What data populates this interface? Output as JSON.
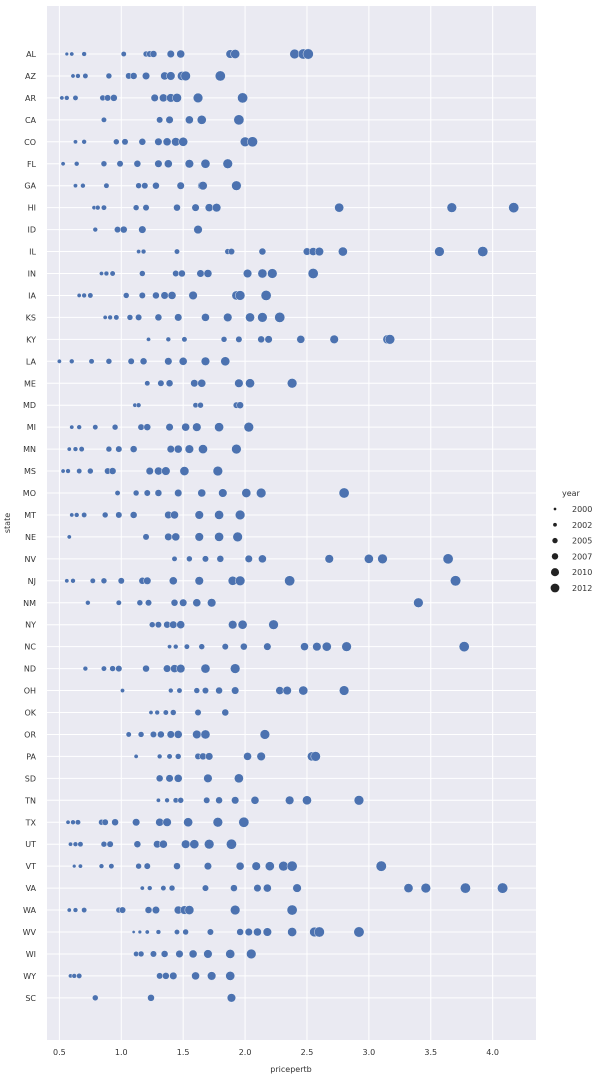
{
  "chart_data": {
    "type": "scatter",
    "xlabel": "pricepertb",
    "ylabel": "state",
    "xlim": [
      0.4,
      4.35
    ],
    "x_ticks": [
      "0.5",
      "1.0",
      "1.5",
      "2.0",
      "2.5",
      "3.0",
      "3.5",
      "4.0"
    ],
    "grid": true,
    "legend": {
      "title": "year",
      "placement": "right",
      "labels": [
        "2000",
        "2002",
        "2005",
        "2007",
        "2010",
        "2012"
      ]
    },
    "point_color": "#4c72b0",
    "categories": [
      "AL",
      "AZ",
      "AR",
      "CA",
      "CO",
      "FL",
      "GA",
      "HI",
      "ID",
      "IL",
      "IN",
      "IA",
      "KS",
      "KY",
      "LA",
      "ME",
      "MD",
      "MI",
      "MN",
      "MS",
      "MO",
      "MT",
      "NE",
      "NV",
      "NJ",
      "NM",
      "NY",
      "NC",
      "ND",
      "OH",
      "OK",
      "OR",
      "PA",
      "SD",
      "TN",
      "TX",
      "UT",
      "VT",
      "VA",
      "WA",
      "WV",
      "WI",
      "WY",
      "SC"
    ],
    "series": [
      {
        "state": "AL",
        "x": [
          0.56,
          0.6,
          0.7,
          1.02,
          1.2,
          1.23,
          1.26,
          1.4,
          1.48,
          1.88,
          1.92,
          2.4,
          2.47,
          2.51
        ],
        "year": [
          1999,
          2000,
          2001,
          2002,
          2003,
          2004,
          2005,
          2006,
          2007,
          2008,
          2009,
          2010,
          2011,
          2012
        ]
      },
      {
        "state": "AZ",
        "x": [
          0.61,
          0.65,
          0.71,
          0.9,
          1.06,
          1.1,
          1.2,
          1.35,
          1.4,
          1.49,
          1.52,
          1.8
        ],
        "year": [
          2000,
          2001,
          2002,
          2003,
          2004,
          2005,
          2006,
          2007,
          2008,
          2009,
          2010,
          2011
        ]
      },
      {
        "state": "AR",
        "x": [
          0.52,
          0.56,
          0.63,
          0.85,
          0.89,
          0.94,
          1.27,
          1.34,
          1.4,
          1.45,
          1.62,
          1.98
        ],
        "year": [
          2000,
          2001,
          2002,
          2003,
          2004,
          2005,
          2006,
          2007,
          2008,
          2009,
          2010,
          2011
        ]
      },
      {
        "state": "CA",
        "x": [
          0.86,
          1.31,
          1.39,
          1.55,
          1.65,
          1.95
        ],
        "year": [
          2002,
          2004,
          2006,
          2007,
          2009,
          2011
        ]
      },
      {
        "state": "CO",
        "x": [
          0.63,
          0.7,
          0.96,
          1.03,
          1.17,
          1.3,
          1.37,
          1.44,
          1.5,
          2.0,
          2.06
        ],
        "year": [
          2000,
          2001,
          2003,
          2004,
          2005,
          2006,
          2007,
          2008,
          2009,
          2010,
          2011
        ]
      },
      {
        "state": "FL",
        "x": [
          0.53,
          0.64,
          0.86,
          0.99,
          1.13,
          1.3,
          1.38,
          1.55,
          1.68,
          1.86
        ],
        "year": [
          2000,
          2001,
          2003,
          2004,
          2005,
          2006,
          2007,
          2008,
          2009,
          2010
        ]
      },
      {
        "state": "GA",
        "x": [
          0.63,
          0.69,
          0.88,
          1.14,
          1.19,
          1.28,
          1.48,
          1.65,
          1.66,
          1.93
        ],
        "year": [
          2000,
          2001,
          2002,
          2003,
          2004,
          2005,
          2006,
          2007,
          2008,
          2010
        ]
      },
      {
        "state": "HI",
        "x": [
          0.78,
          0.81,
          0.86,
          1.12,
          1.2,
          1.45,
          1.6,
          1.71,
          1.77,
          2.76,
          3.67,
          4.17
        ],
        "year": [
          2000,
          2001,
          2002,
          2003,
          2004,
          2005,
          2006,
          2007,
          2008,
          2009,
          2010,
          2011
        ]
      },
      {
        "state": "ID",
        "x": [
          0.79,
          0.97,
          1.02,
          1.17,
          1.62
        ],
        "year": [
          2001,
          2004,
          2005,
          2006,
          2008
        ]
      },
      {
        "state": "IL",
        "x": [
          1.14,
          1.18,
          1.45,
          1.86,
          1.89,
          2.14,
          2.5,
          2.55,
          2.6,
          2.79,
          3.57,
          3.92
        ],
        "year": [
          2000,
          2001,
          2002,
          2003,
          2004,
          2005,
          2006,
          2007,
          2008,
          2009,
          2010,
          2011
        ]
      },
      {
        "state": "IN",
        "x": [
          0.84,
          0.88,
          0.93,
          1.17,
          1.44,
          1.49,
          1.64,
          1.7,
          2.02,
          2.14,
          2.22,
          2.55
        ],
        "year": [
          2000,
          2001,
          2002,
          2003,
          2004,
          2005,
          2006,
          2007,
          2008,
          2009,
          2010,
          2011
        ]
      },
      {
        "state": "IA",
        "x": [
          0.66,
          0.7,
          0.75,
          1.04,
          1.17,
          1.28,
          1.35,
          1.41,
          1.58,
          1.93,
          1.96,
          2.17
        ],
        "year": [
          2000,
          2001,
          2002,
          2003,
          2004,
          2005,
          2006,
          2007,
          2008,
          2009,
          2010,
          2011
        ]
      },
      {
        "state": "KS",
        "x": [
          0.87,
          0.91,
          0.96,
          1.07,
          1.14,
          1.3,
          1.46,
          1.68,
          1.86,
          2.04,
          2.14,
          2.28
        ],
        "year": [
          2000,
          2001,
          2002,
          2003,
          2004,
          2005,
          2006,
          2007,
          2008,
          2009,
          2010,
          2011
        ]
      },
      {
        "state": "KY",
        "x": [
          1.22,
          1.38,
          1.51,
          1.83,
          1.95,
          2.13,
          2.19,
          2.45,
          2.72,
          3.15,
          3.17
        ],
        "year": [
          2000,
          2001,
          2002,
          2003,
          2004,
          2005,
          2006,
          2007,
          2008,
          2009,
          2010
        ]
      },
      {
        "state": "LA",
        "x": [
          0.5,
          0.6,
          0.76,
          0.9,
          1.08,
          1.18,
          1.38,
          1.5,
          1.68,
          1.84
        ],
        "year": [
          2000,
          2001,
          2002,
          2003,
          2004,
          2005,
          2006,
          2007,
          2008,
          2009
        ]
      },
      {
        "state": "ME",
        "x": [
          1.21,
          1.32,
          1.39,
          1.59,
          1.65,
          1.95,
          2.04,
          2.38
        ],
        "year": [
          2002,
          2004,
          2005,
          2006,
          2007,
          2008,
          2009,
          2010
        ]
      },
      {
        "state": "MD",
        "x": [
          1.11,
          1.14,
          1.6,
          1.64,
          1.93,
          1.96
        ],
        "year": [
          2000,
          2001,
          2002,
          2003,
          2004,
          2005
        ]
      },
      {
        "state": "MI",
        "x": [
          0.6,
          0.66,
          0.79,
          0.95,
          1.16,
          1.21,
          1.39,
          1.52,
          1.61,
          1.79,
          2.03
        ],
        "year": [
          2000,
          2001,
          2002,
          2003,
          2004,
          2005,
          2006,
          2007,
          2008,
          2009,
          2010
        ]
      },
      {
        "state": "MN",
        "x": [
          0.58,
          0.63,
          0.68,
          0.9,
          0.98,
          1.1,
          1.4,
          1.46,
          1.55,
          1.66,
          1.93
        ],
        "year": [
          2000,
          2001,
          2002,
          2003,
          2004,
          2005,
          2006,
          2007,
          2008,
          2009,
          2010
        ]
      },
      {
        "state": "MS",
        "x": [
          0.53,
          0.57,
          0.66,
          0.75,
          0.89,
          0.93,
          1.23,
          1.3,
          1.36,
          1.51,
          1.78
        ],
        "year": [
          2000,
          2001,
          2002,
          2003,
          2004,
          2005,
          2006,
          2007,
          2008,
          2009,
          2010
        ]
      },
      {
        "state": "MO",
        "x": [
          0.97,
          1.12,
          1.21,
          1.3,
          1.46,
          1.65,
          1.82,
          2.01,
          2.13,
          2.8
        ],
        "year": [
          2002,
          2003,
          2004,
          2005,
          2006,
          2007,
          2008,
          2009,
          2010,
          2011
        ]
      },
      {
        "state": "MT",
        "x": [
          0.6,
          0.64,
          0.7,
          0.87,
          0.98,
          1.1,
          1.38,
          1.43,
          1.63,
          1.79,
          1.96
        ],
        "year": [
          2000,
          2001,
          2002,
          2003,
          2004,
          2005,
          2006,
          2007,
          2008,
          2009,
          2010
        ]
      },
      {
        "state": "NE",
        "x": [
          0.58,
          1.2,
          1.38,
          1.44,
          1.63,
          1.79,
          1.94
        ],
        "year": [
          2000,
          2004,
          2006,
          2007,
          2008,
          2009,
          2010
        ]
      },
      {
        "state": "NV",
        "x": [
          1.43,
          1.55,
          1.68,
          1.8,
          2.03,
          2.14,
          2.68,
          3.0,
          3.11,
          3.64
        ],
        "year": [
          2002,
          2003,
          2004,
          2005,
          2006,
          2007,
          2008,
          2009,
          2010,
          2011
        ]
      },
      {
        "state": "NJ",
        "x": [
          0.56,
          0.61,
          0.77,
          0.86,
          1.0,
          1.17,
          1.21,
          1.42,
          1.63,
          1.9,
          1.96,
          2.36,
          3.7
        ],
        "year": [
          2000,
          2001,
          2002,
          2003,
          2004,
          2005,
          2006,
          2007,
          2008,
          2009,
          2010,
          2011,
          2012
        ]
      },
      {
        "state": "NM",
        "x": [
          0.73,
          0.98,
          1.15,
          1.22,
          1.43,
          1.5,
          1.61,
          1.73,
          3.4
        ],
        "year": [
          2001,
          2002,
          2003,
          2004,
          2005,
          2006,
          2007,
          2008,
          2010
        ]
      },
      {
        "state": "NY",
        "x": [
          1.25,
          1.3,
          1.37,
          1.42,
          1.48,
          1.9,
          1.98,
          2.23
        ],
        "year": [
          2003,
          2004,
          2005,
          2006,
          2007,
          2008,
          2009,
          2010
        ]
      },
      {
        "state": "NC",
        "x": [
          1.39,
          1.44,
          1.53,
          1.65,
          1.84,
          1.99,
          2.18,
          2.48,
          2.58,
          2.66,
          2.82,
          3.77
        ],
        "year": [
          2000,
          2001,
          2002,
          2003,
          2004,
          2005,
          2006,
          2007,
          2008,
          2009,
          2010,
          2011
        ]
      },
      {
        "state": "ND",
        "x": [
          0.71,
          0.86,
          0.93,
          0.98,
          1.2,
          1.37,
          1.43,
          1.48,
          1.68,
          1.92
        ],
        "year": [
          2001,
          2002,
          2003,
          2004,
          2005,
          2006,
          2007,
          2008,
          2009,
          2010
        ]
      },
      {
        "state": "OH",
        "x": [
          1.01,
          1.4,
          1.47,
          1.61,
          1.68,
          1.79,
          1.92,
          2.28,
          2.34,
          2.47,
          2.8
        ],
        "year": [
          2000,
          2001,
          2002,
          2003,
          2004,
          2005,
          2006,
          2007,
          2008,
          2009,
          2010
        ]
      },
      {
        "state": "OK",
        "x": [
          1.24,
          1.29,
          1.36,
          1.42,
          1.62,
          1.84
        ],
        "year": [
          2000,
          2001,
          2002,
          2003,
          2004,
          2005
        ]
      },
      {
        "state": "OR",
        "x": [
          1.06,
          1.16,
          1.26,
          1.32,
          1.4,
          1.46,
          1.61,
          1.68,
          2.16
        ],
        "year": [
          2002,
          2003,
          2004,
          2005,
          2006,
          2007,
          2008,
          2009,
          2010
        ]
      },
      {
        "state": "PA",
        "x": [
          1.12,
          1.31,
          1.39,
          1.46,
          1.62,
          1.66,
          1.71,
          2.02,
          2.13,
          2.54,
          2.57
        ],
        "year": [
          2000,
          2001,
          2002,
          2003,
          2004,
          2005,
          2006,
          2007,
          2008,
          2009,
          2010
        ]
      },
      {
        "state": "SD",
        "x": [
          1.31,
          1.39,
          1.46,
          1.7,
          1.95
        ],
        "year": [
          2005,
          2006,
          2007,
          2008,
          2009
        ]
      },
      {
        "state": "TN",
        "x": [
          1.3,
          1.37,
          1.44,
          1.48,
          1.69,
          1.79,
          1.92,
          2.08,
          2.36,
          2.5,
          2.92
        ],
        "year": [
          2000,
          2001,
          2002,
          2003,
          2004,
          2005,
          2006,
          2007,
          2008,
          2009,
          2010
        ]
      },
      {
        "state": "TX",
        "x": [
          0.57,
          0.61,
          0.65,
          0.84,
          0.87,
          0.95,
          1.12,
          1.31,
          1.37,
          1.54,
          1.78,
          1.99
        ],
        "year": [
          2000,
          2001,
          2002,
          2003,
          2004,
          2005,
          2006,
          2007,
          2008,
          2009,
          2010,
          2011
        ]
      },
      {
        "state": "UT",
        "x": [
          0.59,
          0.63,
          0.67,
          0.86,
          0.91,
          1.13,
          1.29,
          1.34,
          1.52,
          1.59,
          1.71,
          1.89
        ],
        "year": [
          2000,
          2001,
          2002,
          2003,
          2004,
          2005,
          2006,
          2007,
          2008,
          2009,
          2010,
          2011
        ]
      },
      {
        "state": "VT",
        "x": [
          0.62,
          0.67,
          0.84,
          0.92,
          1.14,
          1.21,
          1.45,
          1.7,
          1.96,
          2.09,
          2.2,
          2.31,
          2.38,
          3.1
        ],
        "year": [
          1999,
          2000,
          2001,
          2002,
          2003,
          2004,
          2005,
          2006,
          2007,
          2008,
          2009,
          2010,
          2011,
          2012
        ]
      },
      {
        "state": "VA",
        "x": [
          1.17,
          1.23,
          1.34,
          1.41,
          1.68,
          1.91,
          2.1,
          2.18,
          2.42,
          3.32,
          3.46,
          3.78,
          4.08
        ],
        "year": [
          2000,
          2001,
          2002,
          2003,
          2004,
          2005,
          2006,
          2007,
          2008,
          2009,
          2010,
          2011,
          2012
        ]
      },
      {
        "state": "WA",
        "x": [
          0.58,
          0.63,
          0.7,
          0.98,
          1.01,
          1.22,
          1.28,
          1.46,
          1.51,
          1.55,
          1.92,
          2.38
        ],
        "year": [
          2000,
          2001,
          2002,
          2003,
          2004,
          2005,
          2006,
          2007,
          2008,
          2009,
          2010,
          2011
        ]
      },
      {
        "state": "WV",
        "x": [
          1.1,
          1.15,
          1.21,
          1.3,
          1.45,
          1.52,
          1.72,
          1.96,
          2.03,
          2.1,
          2.18,
          2.38,
          2.56,
          2.6,
          2.92
        ],
        "year": [
          1998,
          1999,
          2000,
          2001,
          2002,
          2003,
          2004,
          2005,
          2006,
          2007,
          2008,
          2009,
          2010,
          2011,
          2012
        ]
      },
      {
        "state": "WI",
        "x": [
          1.12,
          1.16,
          1.26,
          1.35,
          1.47,
          1.58,
          1.7,
          1.88,
          2.05
        ],
        "year": [
          2002,
          2003,
          2004,
          2005,
          2006,
          2007,
          2008,
          2009,
          2010
        ]
      },
      {
        "state": "WY",
        "x": [
          0.59,
          0.62,
          0.66,
          1.31,
          1.36,
          1.42,
          1.6,
          1.73,
          1.88
        ],
        "year": [
          2000,
          2001,
          2002,
          2004,
          2005,
          2006,
          2007,
          2008,
          2009
        ]
      },
      {
        "state": "SC",
        "x": [
          0.79,
          1.24,
          1.89
        ],
        "year": [
          2003,
          2005,
          2008
        ]
      }
    ]
  }
}
